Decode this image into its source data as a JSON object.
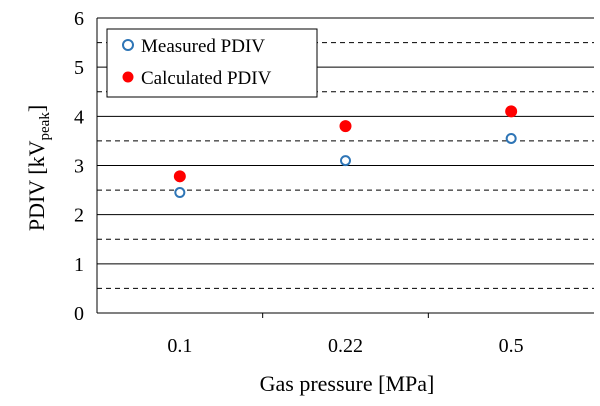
{
  "chart_data": {
    "type": "scatter",
    "title": "",
    "xlabel": "Gas pressure [MPa]",
    "ylabel": {
      "main": "PDIV [kV",
      "subscript": "peak",
      "suffix": "]"
    },
    "categories": [
      "0.1",
      "0.22",
      "0.5"
    ],
    "ylim": [
      0,
      6
    ],
    "yticks": [
      "0",
      "1",
      "2",
      "3",
      "4",
      "5",
      "6"
    ],
    "grid": {
      "major_solid_every": 1,
      "minor_dashed_every": 0.5
    },
    "legend_position": "top-left",
    "series": [
      {
        "name": "Measured PDIV",
        "marker": "open-circle",
        "color": "#2e75b6",
        "values": [
          2.45,
          3.1,
          3.55
        ]
      },
      {
        "name": "Calculated PDIV",
        "marker": "filled-circle",
        "color": "#ff0000",
        "values": [
          2.78,
          3.8,
          4.1
        ]
      }
    ]
  }
}
